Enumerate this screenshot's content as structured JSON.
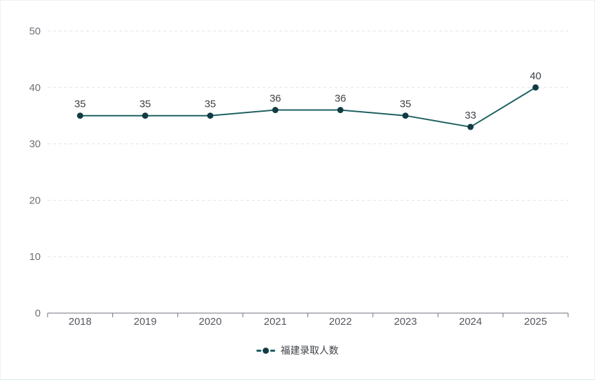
{
  "chart_data": {
    "type": "line",
    "categories": [
      "2018",
      "2019",
      "2020",
      "2021",
      "2022",
      "2023",
      "2024",
      "2025"
    ],
    "values": [
      35,
      35,
      35,
      36,
      36,
      35,
      33,
      40
    ],
    "series": [
      {
        "name": "福建录取人数",
        "values": [
          35,
          35,
          35,
          36,
          36,
          35,
          33,
          40
        ]
      }
    ],
    "title": "",
    "xlabel": "",
    "ylabel": "",
    "ylim": [
      0,
      50
    ],
    "ytick_step": 10,
    "ytick_labels": [
      "0",
      "10",
      "20",
      "30",
      "40",
      "50"
    ],
    "grid": "horizontal-dashed",
    "data_labels_shown": true,
    "legend_position": "bottom-center",
    "legend": {
      "label": "福建录取人数"
    }
  },
  "colors": {
    "line": "#1d6060",
    "point": "#123c44",
    "grid_line": "#dfe3ea",
    "axis_line": "#6e7079",
    "y_axis_label": "#6e7079",
    "x_axis_label": "#54575d",
    "data_label": "#3c3f44",
    "legend_text": "#3f4247",
    "background": "#ffffff",
    "card_border": "#eef2f4"
  }
}
